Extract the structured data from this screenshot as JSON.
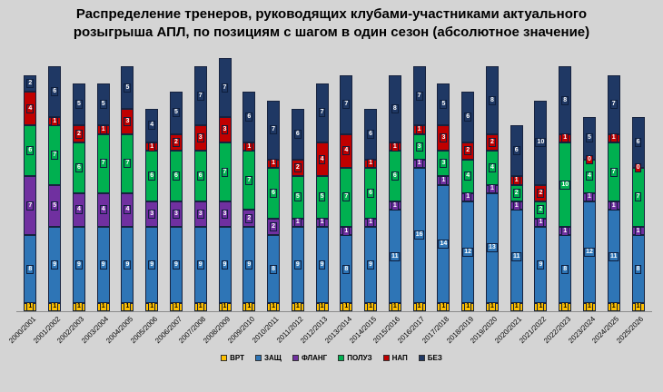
{
  "title": {
    "line1": "Распределение тренеров, руководящих клубами-участниками актуального",
    "line2": "розыгрыша АПЛ, по позициям с шагом в один сезон (абсолютное значение)"
  },
  "chart_data": {
    "type": "bar",
    "stacked": true,
    "title": "Распределение тренеров, руководящих клубами-участниками актуального розыгрыша АПЛ, по позициям с шагом в один сезон (абсолютное значение)",
    "xlabel": "",
    "ylabel": "",
    "ylim": [
      0,
      30
    ],
    "grid": false,
    "legend_position": "bottom",
    "plot_background": "#d4d4d4",
    "categories": [
      "2000/2001",
      "2001/2002",
      "2002/2003",
      "2003/2004",
      "2004/2005",
      "2005/2006",
      "2006/2007",
      "2007/2008",
      "2008/2009",
      "2009/2010",
      "2010/2011",
      "2011/2012",
      "2012/2013",
      "2013/2014",
      "2014/2015",
      "2015/2016",
      "2016/2017",
      "2017/2018",
      "2018/2019",
      "2019/2020",
      "2020/2021",
      "2021/2022",
      "2022/2023",
      "2023/2024",
      "2024/2025",
      "2025/2026"
    ],
    "series": [
      {
        "name": "ВРТ",
        "slug": "vrt",
        "color": "#FFC000",
        "values": [
          1,
          1,
          1,
          1,
          1,
          1,
          1,
          1,
          1,
          1,
          1,
          1,
          1,
          1,
          1,
          1,
          1,
          1,
          1,
          1,
          1,
          1,
          1,
          1,
          1,
          1
        ]
      },
      {
        "name": "ЗАЩ",
        "slug": "zasch",
        "color": "#2E75B6",
        "values": [
          8,
          9,
          9,
          9,
          9,
          9,
          9,
          9,
          9,
          9,
          8,
          9,
          9,
          8,
          9,
          11,
          16,
          14,
          12,
          13,
          11,
          9,
          8,
          12,
          11,
          8
        ]
      },
      {
        "name": "ФЛАНГ",
        "slug": "flang",
        "color": "#7030A0",
        "values": [
          7,
          5,
          4,
          4,
          4,
          3,
          3,
          3,
          3,
          2,
          2,
          1,
          1,
          1,
          1,
          1,
          1,
          1,
          1,
          1,
          1,
          1,
          1,
          1,
          1,
          1
        ]
      },
      {
        "name": "ПОЛУЗ",
        "slug": "poluz",
        "color": "#00B050",
        "values": [
          6,
          7,
          6,
          7,
          7,
          6,
          6,
          6,
          7,
          7,
          6,
          5,
          5,
          7,
          6,
          6,
          3,
          3,
          4,
          4,
          2,
          2,
          10,
          4,
          7,
          7
        ]
      },
      {
        "name": "НАП",
        "slug": "nap",
        "color": "#C00000",
        "values": [
          4,
          1,
          2,
          1,
          3,
          1,
          2,
          3,
          3,
          1,
          1,
          2,
          4,
          4,
          1,
          1,
          1,
          3,
          2,
          2,
          1,
          2,
          1,
          0,
          1,
          0
        ]
      },
      {
        "name": "БЕЗ",
        "slug": "bez",
        "color": "#1F3864",
        "values": [
          2,
          6,
          5,
          5,
          5,
          4,
          5,
          7,
          7,
          6,
          7,
          6,
          7,
          7,
          6,
          8,
          7,
          5,
          6,
          8,
          6,
          10,
          8,
          5,
          7,
          6
        ]
      }
    ]
  }
}
